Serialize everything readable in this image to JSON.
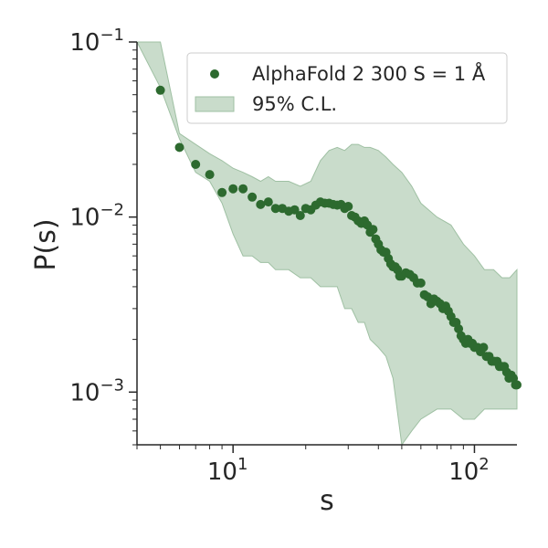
{
  "chart_data": {
    "type": "scatter",
    "title": "",
    "xlabel": "s",
    "ylabel": "P(s)",
    "xscale": "log",
    "yscale": "log",
    "xlim": [
      4,
      150
    ],
    "ylim": [
      0.0005,
      0.1
    ],
    "grid": false,
    "legend_position": "top-right",
    "colors": {
      "points": "#2d6a2f",
      "band_fill": "#c9dccb",
      "band_edge": "#9fc0a3",
      "axis": "#262626"
    },
    "x_ticks": [
      {
        "base": "10",
        "exp": "1",
        "value": 10
      },
      {
        "base": "10",
        "exp": "2",
        "value": 100
      }
    ],
    "y_ticks": [
      {
        "base": "10",
        "exp": "−3",
        "value": 0.001
      },
      {
        "base": "10",
        "exp": "−2",
        "value": 0.01
      },
      {
        "base": "10",
        "exp": "−1",
        "value": 0.1
      }
    ],
    "series": [
      {
        "name": "AlphaFold 2 300 S = 1 Å",
        "kind": "points",
        "x": [
          5,
          6,
          7,
          8,
          9,
          10,
          11,
          12,
          13,
          14,
          15,
          16,
          17,
          18,
          19,
          20,
          21,
          22,
          23,
          24,
          25,
          26,
          27,
          28,
          29,
          30,
          31,
          32,
          33,
          34,
          35,
          36,
          37,
          38,
          39,
          40,
          41,
          42,
          43,
          44,
          45,
          46,
          47,
          48,
          49,
          50,
          52,
          54,
          56,
          58,
          60,
          62,
          64,
          66,
          68,
          70,
          72,
          74,
          76,
          78,
          80,
          82,
          84,
          86,
          88,
          90,
          92,
          94,
          96,
          98,
          100,
          103,
          106,
          109,
          112,
          115,
          118,
          121,
          124,
          127,
          130,
          133,
          136,
          139,
          142,
          145,
          148,
          150
        ],
        "y": [
          0.053,
          0.025,
          0.02,
          0.0175,
          0.0138,
          0.0145,
          0.0145,
          0.013,
          0.0118,
          0.0122,
          0.0112,
          0.0112,
          0.0108,
          0.011,
          0.0102,
          0.0112,
          0.011,
          0.0117,
          0.0122,
          0.012,
          0.012,
          0.0118,
          0.0117,
          0.0118,
          0.0112,
          0.0115,
          0.0102,
          0.01,
          0.0095,
          0.0092,
          0.0095,
          0.009,
          0.0082,
          0.0085,
          0.0075,
          0.007,
          0.0065,
          0.0063,
          0.0063,
          0.0058,
          0.0054,
          0.0052,
          0.0052,
          0.005,
          0.0046,
          0.0046,
          0.0048,
          0.0047,
          0.0045,
          0.0042,
          0.0042,
          0.0036,
          0.0035,
          0.0032,
          0.0034,
          0.0033,
          0.0032,
          0.003,
          0.0031,
          0.0029,
          0.0027,
          0.0025,
          0.0025,
          0.0023,
          0.0021,
          0.002,
          0.0019,
          0.002,
          0.0019,
          0.0019,
          0.0018,
          0.0018,
          0.0017,
          0.0018,
          0.0016,
          0.0016,
          0.0015,
          0.0015,
          0.0015,
          0.0014,
          0.0014,
          0.0014,
          0.0013,
          0.0012,
          0.00125,
          0.0012,
          0.0011,
          0.0011
        ]
      },
      {
        "name": "95% C.L.",
        "kind": "band",
        "x": [
          4,
          5,
          6,
          7,
          8,
          9,
          10,
          11,
          12,
          13,
          14,
          15,
          17,
          19,
          21,
          23,
          25,
          27,
          29,
          31,
          33,
          35,
          37,
          40,
          43,
          46,
          50,
          55,
          60,
          70,
          80,
          90,
          100,
          110,
          120,
          130,
          140,
          150
        ],
        "upper": [
          0.1,
          0.1,
          0.03,
          0.026,
          0.023,
          0.021,
          0.019,
          0.018,
          0.017,
          0.016,
          0.017,
          0.016,
          0.016,
          0.015,
          0.016,
          0.021,
          0.024,
          0.025,
          0.024,
          0.026,
          0.026,
          0.025,
          0.025,
          0.024,
          0.022,
          0.02,
          0.018,
          0.015,
          0.012,
          0.01,
          0.009,
          0.007,
          0.006,
          0.005,
          0.005,
          0.0045,
          0.0045,
          0.005
        ],
        "lower": [
          0.1,
          0.055,
          0.028,
          0.018,
          0.016,
          0.012,
          0.008,
          0.006,
          0.006,
          0.0055,
          0.0055,
          0.005,
          0.005,
          0.0045,
          0.0045,
          0.004,
          0.004,
          0.004,
          0.003,
          0.003,
          0.0025,
          0.0025,
          0.002,
          0.0018,
          0.0016,
          0.0012,
          0.0005,
          0.0006,
          0.0007,
          0.0008,
          0.0008,
          0.0007,
          0.0007,
          0.0008,
          0.0008,
          0.0008,
          0.0008,
          0.0008
        ]
      }
    ]
  }
}
